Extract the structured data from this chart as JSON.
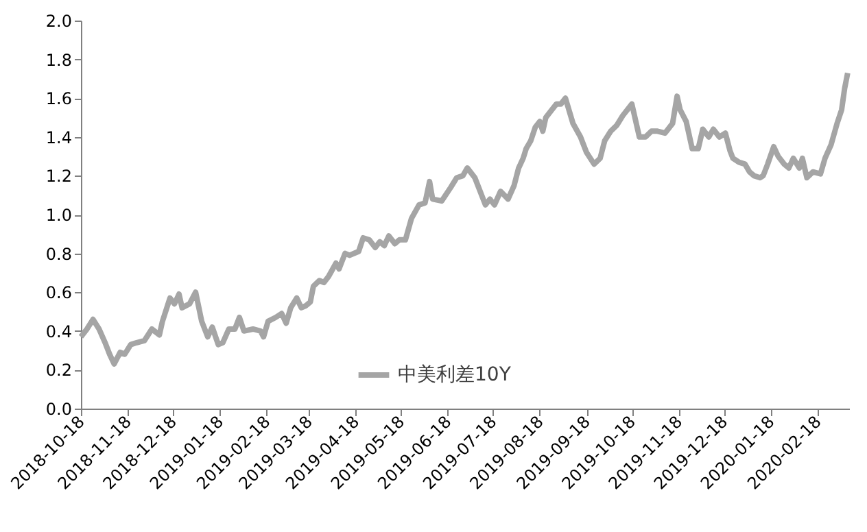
{
  "chart_data": {
    "type": "line",
    "x": [
      "2018-10-18",
      "2018-10-22",
      "2018-10-26",
      "2018-10-30",
      "2018-11-03",
      "2018-11-06",
      "2018-11-09",
      "2018-11-13",
      "2018-11-16",
      "2018-11-20",
      "2018-11-24",
      "2018-11-29",
      "2018-12-04",
      "2018-12-09",
      "2018-12-11",
      "2018-12-16",
      "2018-12-19",
      "2018-12-22",
      "2018-12-24",
      "2018-12-29",
      "2019-01-02",
      "2019-01-06",
      "2019-01-10",
      "2019-01-13",
      "2019-01-17",
      "2019-01-20",
      "2019-01-24",
      "2019-01-28",
      "2019-01-31",
      "2019-02-03",
      "2019-02-09",
      "2019-02-14",
      "2019-02-16",
      "2019-02-19",
      "2019-02-24",
      "2019-02-28",
      "2019-03-03",
      "2019-03-06",
      "2019-03-10",
      "2019-03-13",
      "2019-03-16",
      "2019-03-19",
      "2019-03-21",
      "2019-03-25",
      "2019-03-28",
      "2019-03-31",
      "2019-04-05",
      "2019-04-07",
      "2019-04-11",
      "2019-04-14",
      "2019-04-20",
      "2019-04-23",
      "2019-04-27",
      "2019-05-01",
      "2019-05-04",
      "2019-05-07",
      "2019-05-10",
      "2019-05-14",
      "2019-05-17",
      "2019-05-21",
      "2019-05-25",
      "2019-05-30",
      "2019-06-03",
      "2019-06-06",
      "2019-06-08",
      "2019-06-14",
      "2019-06-20",
      "2019-06-24",
      "2019-06-28",
      "2019-07-01",
      "2019-07-06",
      "2019-07-09",
      "2019-07-13",
      "2019-07-16",
      "2019-07-19",
      "2019-07-23",
      "2019-07-28",
      "2019-08-01",
      "2019-08-04",
      "2019-08-07",
      "2019-08-09",
      "2019-08-12",
      "2019-08-15",
      "2019-08-18",
      "2019-08-20",
      "2019-08-22",
      "2019-08-25",
      "2019-08-29",
      "2019-09-01",
      "2019-09-04",
      "2019-09-09",
      "2019-09-14",
      "2019-09-18",
      "2019-09-23",
      "2019-09-27",
      "2019-09-30",
      "2019-10-04",
      "2019-10-08",
      "2019-10-12",
      "2019-10-15",
      "2019-10-18",
      "2019-10-23",
      "2019-10-27",
      "2019-10-31",
      "2019-11-04",
      "2019-11-09",
      "2019-11-11",
      "2019-11-14",
      "2019-11-17",
      "2019-11-19",
      "2019-11-23",
      "2019-11-27",
      "2019-12-01",
      "2019-12-04",
      "2019-12-08",
      "2019-12-11",
      "2019-12-15",
      "2019-12-19",
      "2019-12-22",
      "2019-12-24",
      "2019-12-28",
      "2020-01-01",
      "2020-01-04",
      "2020-01-07",
      "2020-01-11",
      "2020-01-13",
      "2020-01-16",
      "2020-01-20",
      "2020-01-23",
      "2020-01-27",
      "2020-01-30",
      "2020-02-02",
      "2020-02-06",
      "2020-02-08",
      "2020-02-11",
      "2020-02-15",
      "2020-02-20",
      "2020-02-23",
      "2020-02-27",
      "2020-03-02",
      "2020-03-05",
      "2020-03-07",
      "2020-03-09"
    ],
    "series": [
      {
        "name": "中美利差10Y",
        "color": "#a5a5a5",
        "values": [
          0.37,
          0.41,
          0.46,
          0.41,
          0.34,
          0.28,
          0.23,
          0.29,
          0.28,
          0.33,
          0.34,
          0.35,
          0.41,
          0.38,
          0.45,
          0.57,
          0.54,
          0.59,
          0.52,
          0.54,
          0.6,
          0.45,
          0.37,
          0.42,
          0.33,
          0.34,
          0.41,
          0.41,
          0.47,
          0.4,
          0.41,
          0.4,
          0.37,
          0.45,
          0.47,
          0.49,
          0.44,
          0.52,
          0.57,
          0.52,
          0.53,
          0.55,
          0.63,
          0.66,
          0.65,
          0.68,
          0.75,
          0.72,
          0.8,
          0.79,
          0.81,
          0.88,
          0.87,
          0.83,
          0.86,
          0.84,
          0.89,
          0.85,
          0.87,
          0.87,
          0.98,
          1.05,
          1.06,
          1.17,
          1.08,
          1.07,
          1.14,
          1.19,
          1.2,
          1.24,
          1.19,
          1.13,
          1.05,
          1.08,
          1.05,
          1.12,
          1.08,
          1.15,
          1.24,
          1.29,
          1.34,
          1.38,
          1.45,
          1.48,
          1.43,
          1.5,
          1.53,
          1.57,
          1.57,
          1.6,
          1.47,
          1.4,
          1.32,
          1.26,
          1.29,
          1.38,
          1.43,
          1.46,
          1.51,
          1.54,
          1.57,
          1.4,
          1.4,
          1.43,
          1.43,
          1.42,
          1.44,
          1.47,
          1.61,
          1.54,
          1.48,
          1.34,
          1.34,
          1.44,
          1.4,
          1.44,
          1.4,
          1.42,
          1.33,
          1.29,
          1.27,
          1.26,
          1.22,
          1.2,
          1.19,
          1.2,
          1.26,
          1.35,
          1.3,
          1.26,
          1.24,
          1.29,
          1.24,
          1.29,
          1.19,
          1.22,
          1.21,
          1.29,
          1.36,
          1.47,
          1.54,
          1.65,
          1.73
        ]
      }
    ],
    "xlim": [
      "2018-10-18",
      "2020-03-10"
    ],
    "xticks": [
      "2018-10-18",
      "2018-11-18",
      "2018-12-18",
      "2019-01-18",
      "2019-02-18",
      "2019-03-18",
      "2019-04-18",
      "2019-05-18",
      "2019-06-18",
      "2019-07-18",
      "2019-08-18",
      "2019-09-18",
      "2019-10-18",
      "2019-11-18",
      "2019-12-18",
      "2020-01-18",
      "2020-02-18"
    ],
    "ylim": [
      0,
      2.0
    ],
    "yticks": [
      {
        "value": 0,
        "label": "0.0"
      },
      {
        "value": 0.2,
        "label": "0.2"
      },
      {
        "value": 0.4,
        "label": "0.4"
      },
      {
        "value": 0.6,
        "label": "0.6"
      },
      {
        "value": 0.8,
        "label": "0.8"
      },
      {
        "value": 1.0,
        "label": "1.0"
      },
      {
        "value": 1.2,
        "label": "1.2"
      },
      {
        "value": 1.4,
        "label": "1.4"
      },
      {
        "value": 1.6,
        "label": "1.6"
      },
      {
        "value": 1.8,
        "label": "1.8"
      },
      {
        "value": 2.0,
        "label": "2.0"
      }
    ],
    "legend": "bottom",
    "grid": false,
    "marker": "none",
    "line_style": "solid"
  }
}
